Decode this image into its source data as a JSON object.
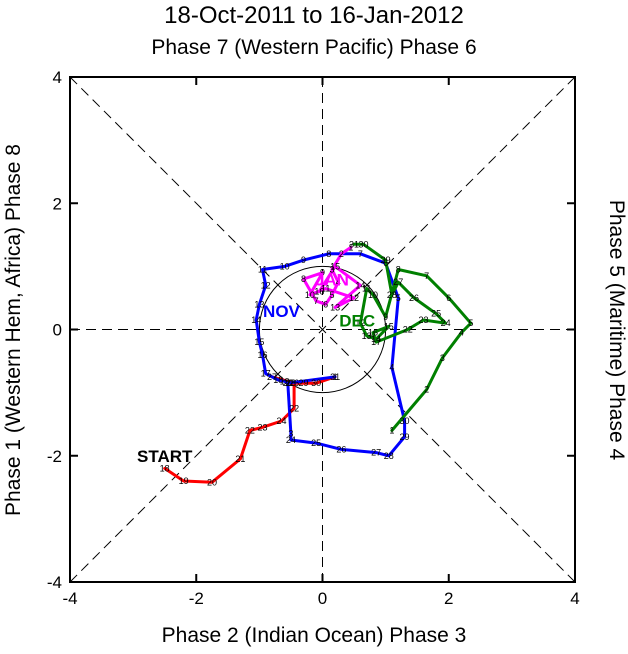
{
  "chart_data": {
    "type": "line",
    "title": "18-Oct-2011 to 16-Jan-2012",
    "subtitle": "Phase 7 (Western Pacific) Phase 6",
    "xlabel": "Phase 2 (Indian Ocean) Phase 3",
    "ylabel_left": "Phase 1 (Western Hem, Africa) Phase 8",
    "ylabel_right": "Phase 5 (Maritime) Phase 4",
    "xlim": [
      -4,
      4
    ],
    "ylim": [
      -4,
      4
    ],
    "xticks": [
      "-4",
      "-2",
      "0",
      "2",
      "4"
    ],
    "yticks": [
      "-4",
      "-2",
      "0",
      "2",
      "4"
    ],
    "start_label": "START",
    "colors": {
      "oct": "#ff0000",
      "nov": "#0000ff",
      "dec": "#008000",
      "jan": "#ff00ff"
    },
    "series": [
      {
        "name": "",
        "month_label": "",
        "color": "#ff0000",
        "points": [
          {
            "d": "18",
            "x": -2.5,
            "y": -2.2
          },
          {
            "d": "19",
            "x": -2.2,
            "y": -2.4
          },
          {
            "d": "20",
            "x": -1.75,
            "y": -2.42
          },
          {
            "d": "21",
            "x": -1.3,
            "y": -2.05
          },
          {
            "d": "22",
            "x": -1.15,
            "y": -1.6
          },
          {
            "d": "23",
            "x": -0.95,
            "y": -1.55
          },
          {
            "d": "24",
            "x": -0.65,
            "y": -1.45
          },
          {
            "d": "22",
            "x": -0.45,
            "y": -1.25
          },
          {
            "d": "26",
            "x": -0.45,
            "y": -0.85
          },
          {
            "d": "27",
            "x": -0.8,
            "y": -0.75
          },
          {
            "d": "28",
            "x": -0.5,
            "y": -0.85
          },
          {
            "d": "29",
            "x": -0.3,
            "y": -0.85
          },
          {
            "d": "30",
            "x": -0.1,
            "y": -0.85
          },
          {
            "d": "31",
            "x": 0.2,
            "y": -0.75
          }
        ]
      },
      {
        "name": "",
        "month_label": "NOV",
        "color": "#0000ff",
        "points": [
          {
            "d": "1",
            "x": 0.2,
            "y": -0.75
          },
          {
            "d": "2",
            "x": -0.55,
            "y": -0.85
          },
          {
            "d": "3",
            "x": -0.5,
            "y": -1.65
          },
          {
            "d": "24",
            "x": -0.5,
            "y": -1.75
          },
          {
            "d": "25",
            "x": -0.1,
            "y": -1.8
          },
          {
            "d": "26",
            "x": 0.3,
            "y": -1.9
          },
          {
            "d": "27",
            "x": 0.85,
            "y": -1.95
          },
          {
            "d": "28",
            "x": 1.05,
            "y": -2.0
          },
          {
            "d": "29",
            "x": 1.3,
            "y": -1.7
          },
          {
            "d": "30",
            "x": 1.3,
            "y": -1.45
          },
          {
            "d": "4",
            "x": 1.1,
            "y": -0.6
          },
          {
            "d": "5",
            "x": 1.2,
            "y": 0.5
          },
          {
            "d": "6",
            "x": 1.0,
            "y": 1.05
          },
          {
            "d": "7",
            "x": 0.6,
            "y": 1.2
          },
          {
            "d": "8",
            "x": 0.1,
            "y": 1.2
          },
          {
            "d": "9",
            "x": -0.3,
            "y": 1.1
          },
          {
            "d": "10",
            "x": -0.6,
            "y": 1.0
          },
          {
            "d": "11",
            "x": -0.95,
            "y": 0.95
          },
          {
            "d": "12",
            "x": -0.9,
            "y": 0.7
          },
          {
            "d": "13",
            "x": -1.0,
            "y": 0.4
          },
          {
            "d": "14",
            "x": -1.05,
            "y": 0.15
          },
          {
            "d": "15",
            "x": -1.0,
            "y": -0.2
          },
          {
            "d": "16",
            "x": -0.95,
            "y": -0.4
          },
          {
            "d": "17",
            "x": -0.9,
            "y": -0.7
          },
          {
            "d": "18",
            "x": -0.7,
            "y": -0.8
          },
          {
            "d": "19",
            "x": -0.6,
            "y": -0.82
          },
          {
            "d": "20",
            "x": -0.55,
            "y": -0.85
          }
        ]
      },
      {
        "name": "",
        "month_label": "DEC",
        "color": "#008000",
        "points": [
          {
            "d": "1",
            "x": 1.1,
            "y": -1.6
          },
          {
            "d": "2",
            "x": 1.65,
            "y": -0.95
          },
          {
            "d": "3",
            "x": 1.9,
            "y": -0.45
          },
          {
            "d": "4",
            "x": 2.2,
            "y": -0.05
          },
          {
            "d": "5",
            "x": 2.35,
            "y": 0.1
          },
          {
            "d": "6",
            "x": 2.0,
            "y": 0.5
          },
          {
            "d": "7",
            "x": 1.65,
            "y": 0.85
          },
          {
            "d": "8",
            "x": 1.2,
            "y": 0.95
          },
          {
            "d": "9",
            "x": 1.0,
            "y": 0.2
          },
          {
            "d": "10",
            "x": 0.8,
            "y": 0.55
          },
          {
            "d": "11",
            "x": 0.7,
            "y": 0.65
          },
          {
            "d": "12",
            "x": 0.6,
            "y": 0.1
          },
          {
            "d": "13",
            "x": 0.7,
            "y": -0.1
          },
          {
            "d": "14",
            "x": 0.85,
            "y": -0.15
          },
          {
            "d": "15",
            "x": 1.05,
            "y": 0.05
          },
          {
            "d": "16",
            "x": 0.8,
            "y": -0.05
          },
          {
            "d": "17",
            "x": 0.85,
            "y": -0.2
          },
          {
            "d": "22",
            "x": 1.35,
            "y": 0.0
          },
          {
            "d": "23",
            "x": 1.6,
            "y": 0.15
          },
          {
            "d": "24",
            "x": 1.95,
            "y": 0.1
          },
          {
            "d": "25",
            "x": 1.8,
            "y": 0.25
          },
          {
            "d": "26",
            "x": 1.45,
            "y": 0.5
          },
          {
            "d": "27",
            "x": 1.2,
            "y": 0.75
          },
          {
            "d": "28",
            "x": 1.1,
            "y": 0.55
          },
          {
            "d": "29",
            "x": 1.0,
            "y": 1.1
          },
          {
            "d": "30",
            "x": 0.65,
            "y": 1.35
          },
          {
            "d": "31",
            "x": 0.5,
            "y": 1.35
          }
        ]
      },
      {
        "name": "",
        "month_label": "JAN",
        "color": "#ff00ff",
        "points": [
          {
            "d": "1",
            "x": 0.45,
            "y": 1.3
          },
          {
            "d": "2",
            "x": 0.3,
            "y": 1.2
          },
          {
            "d": "3",
            "x": 0.15,
            "y": 0.95
          },
          {
            "d": "4",
            "x": 0.25,
            "y": 0.75
          },
          {
            "d": "5",
            "x": 0.15,
            "y": 0.55
          },
          {
            "d": "6",
            "x": 0.05,
            "y": 0.4
          },
          {
            "d": "7",
            "x": -0.1,
            "y": 0.45
          },
          {
            "d": "8",
            "x": -0.3,
            "y": 0.8
          },
          {
            "d": "9",
            "x": 0.0,
            "y": 0.9
          },
          {
            "d": "10",
            "x": -0.2,
            "y": 0.55
          },
          {
            "d": "11",
            "x": 0.05,
            "y": 0.65
          },
          {
            "d": "12",
            "x": 0.5,
            "y": 0.5
          },
          {
            "d": "13",
            "x": 0.2,
            "y": 0.35
          },
          {
            "d": "14",
            "x": 0.6,
            "y": 0.7
          },
          {
            "d": "15",
            "x": 0.2,
            "y": 1.0
          },
          {
            "d": "16",
            "x": -0.05,
            "y": 0.6
          }
        ]
      }
    ]
  }
}
